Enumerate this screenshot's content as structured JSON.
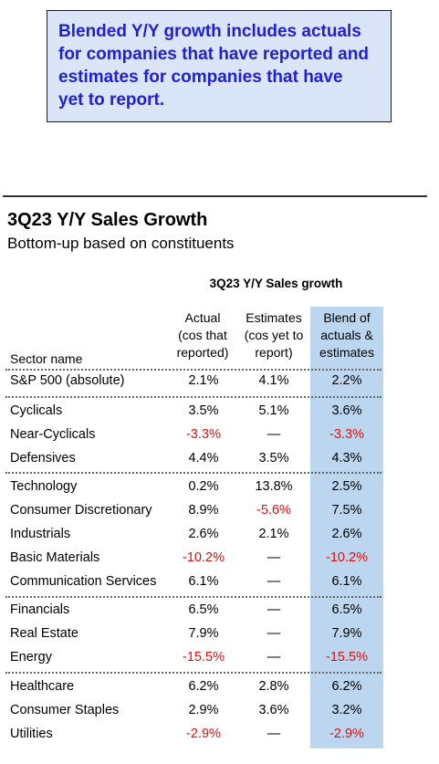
{
  "callout": "Blended Y/Y growth includes actuals\nfor companies that have reported and\nestimates for companies that have\nyet to report.",
  "title": "3Q23 Y/Y Sales Growth",
  "subtitle": "Bottom-up based on constituents",
  "table": {
    "title": "3Q23 Y/Y Sales growth",
    "col_sector": "Sector name",
    "col_actual": "Actual\n(cos that\nreported)",
    "col_estimates": "Estimates\n(cos yet to\nreport)",
    "col_blend": "Blend of\nactuals &\nestimates",
    "rows": [
      {
        "name": "S&P 500 (absolute)",
        "actual": "2.1%",
        "estimates": "4.1%",
        "blend": "2.2%"
      },
      {
        "name": "Cyclicals",
        "actual": "3.5%",
        "estimates": "5.1%",
        "blend": "3.6%"
      },
      {
        "name": "Near-Cyclicals",
        "actual": "-3.3%",
        "estimates": "—",
        "blend": "-3.3%"
      },
      {
        "name": "Defensives",
        "actual": "4.4%",
        "estimates": "3.5%",
        "blend": "4.3%"
      },
      {
        "name": "Technology",
        "actual": "0.2%",
        "estimates": "13.8%",
        "blend": "2.5%"
      },
      {
        "name": "Consumer Discretionary",
        "actual": "8.9%",
        "estimates": "-5.6%",
        "blend": "7.5%"
      },
      {
        "name": "Industrials",
        "actual": "2.6%",
        "estimates": "2.1%",
        "blend": "2.6%"
      },
      {
        "name": "Basic Materials",
        "actual": "-10.2%",
        "estimates": "—",
        "blend": "-10.2%"
      },
      {
        "name": "Communication Services",
        "actual": "6.1%",
        "estimates": "—",
        "blend": "6.1%"
      },
      {
        "name": "Financials",
        "actual": "6.5%",
        "estimates": "—",
        "blend": "6.5%"
      },
      {
        "name": "Real Estate",
        "actual": "7.9%",
        "estimates": "—",
        "blend": "7.9%"
      },
      {
        "name": "Energy",
        "actual": "-15.5%",
        "estimates": "—",
        "blend": "-15.5%"
      },
      {
        "name": "Healthcare",
        "actual": "6.2%",
        "estimates": "2.8%",
        "blend": "6.2%"
      },
      {
        "name": "Consumer Staples",
        "actual": "2.9%",
        "estimates": "3.6%",
        "blend": "3.2%"
      },
      {
        "name": "Utilities",
        "actual": "-2.9%",
        "estimates": "—",
        "blend": "-2.9%"
      }
    ]
  },
  "colors": {
    "callout_bg": "#dbe5f8",
    "callout_text": "#1f1fd6",
    "highlight": "#bcd6ef",
    "negative": "#e01010"
  }
}
